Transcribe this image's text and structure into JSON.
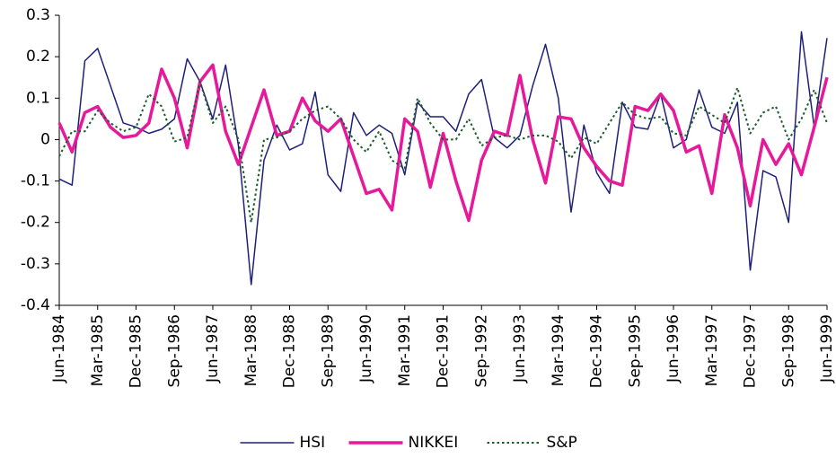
{
  "chart_data": {
    "type": "line",
    "categories": [
      "Jun-1984",
      null,
      null,
      "Mar-1985",
      null,
      null,
      "Dec-1985",
      null,
      null,
      "Sep-1986",
      null,
      null,
      "Jun-1987",
      null,
      null,
      "Mar-1988",
      null,
      null,
      "Dec-1988",
      null,
      null,
      "Sep-1989",
      null,
      null,
      "Jun-1990",
      null,
      null,
      "Mar-1991",
      null,
      null,
      "Dec-1991",
      null,
      null,
      "Sep-1992",
      null,
      null,
      "Jun-1993",
      null,
      null,
      "Mar-1994",
      null,
      null,
      "Dec-1994",
      null,
      null,
      "Sep-1995",
      null,
      null,
      "Jun-1996",
      null,
      null,
      "Mar-1997",
      null,
      null,
      "Dec-1997",
      null,
      null,
      "Sep-1998",
      null,
      null,
      "Jun-1999"
    ],
    "series": [
      {
        "name": "HSI",
        "color": "#1f1f7a",
        "linewidth": 1.5,
        "linestyle": "solid",
        "values": [
          -0.095,
          -0.11,
          0.19,
          0.22,
          0.13,
          0.04,
          0.03,
          0.015,
          0.025,
          0.05,
          0.195,
          0.14,
          0.05,
          0.18,
          -0.015,
          -0.35,
          -0.05,
          0.035,
          -0.025,
          -0.01,
          0.115,
          -0.085,
          -0.125,
          0.065,
          0.01,
          0.035,
          0.015,
          -0.085,
          0.09,
          0.055,
          0.055,
          0.02,
          0.11,
          0.145,
          0.005,
          -0.02,
          0.01,
          0.13,
          0.23,
          0.1,
          -0.175,
          0.035,
          -0.08,
          -0.13,
          0.09,
          0.03,
          0.025,
          0.11,
          -0.02,
          0.0,
          0.12,
          0.03,
          0.015,
          0.09,
          -0.315,
          -0.075,
          -0.09,
          -0.2,
          0.26,
          0.03,
          0.245
        ]
      },
      {
        "name": "NIKKEI",
        "color": "#e6199a",
        "linewidth": 3.5,
        "linestyle": "solid",
        "values": [
          0.04,
          -0.03,
          0.065,
          0.08,
          0.03,
          0.005,
          0.01,
          0.04,
          0.17,
          0.1,
          -0.02,
          0.14,
          0.18,
          0.02,
          -0.06,
          0.03,
          0.12,
          0.01,
          0.02,
          0.1,
          0.045,
          0.02,
          0.05,
          -0.04,
          -0.13,
          -0.12,
          -0.17,
          0.05,
          0.02,
          -0.115,
          0.015,
          -0.1,
          -0.195,
          -0.05,
          0.02,
          0.01,
          0.155,
          0.0,
          -0.105,
          0.055,
          0.05,
          -0.02,
          -0.065,
          -0.1,
          -0.11,
          0.08,
          0.07,
          0.11,
          0.07,
          -0.03,
          -0.015,
          -0.13,
          0.06,
          -0.02,
          -0.16,
          0.0,
          -0.06,
          -0.01,
          -0.085,
          0.03,
          0.15
        ]
      },
      {
        "name": "S&P",
        "color": "#1a5c2a",
        "linewidth": 2,
        "linestyle": "dotted",
        "values": [
          -0.04,
          0.02,
          0.02,
          0.07,
          0.04,
          0.02,
          0.03,
          0.11,
          0.08,
          -0.005,
          0.005,
          0.14,
          0.04,
          0.08,
          0.0,
          -0.2,
          0.0,
          0.005,
          0.02,
          0.05,
          0.07,
          0.08,
          0.05,
          0.0,
          -0.03,
          0.02,
          -0.05,
          -0.07,
          0.1,
          0.04,
          0.0,
          0.0,
          0.05,
          -0.015,
          0.005,
          0.01,
          0.0,
          0.01,
          0.01,
          -0.005,
          -0.045,
          0.005,
          -0.01,
          0.04,
          0.09,
          0.06,
          0.05,
          0.055,
          0.015,
          0.01,
          0.08,
          0.06,
          0.04,
          0.125,
          0.015,
          0.065,
          0.08,
          0.0,
          0.05,
          0.12,
          0.04
        ]
      }
    ],
    "ylim": [
      -0.4,
      0.3
    ],
    "yticks": [
      -0.4,
      -0.3,
      -0.2,
      -0.1,
      0,
      0.1,
      0.2,
      0.3
    ],
    "grid": false,
    "legend": "bottom"
  }
}
